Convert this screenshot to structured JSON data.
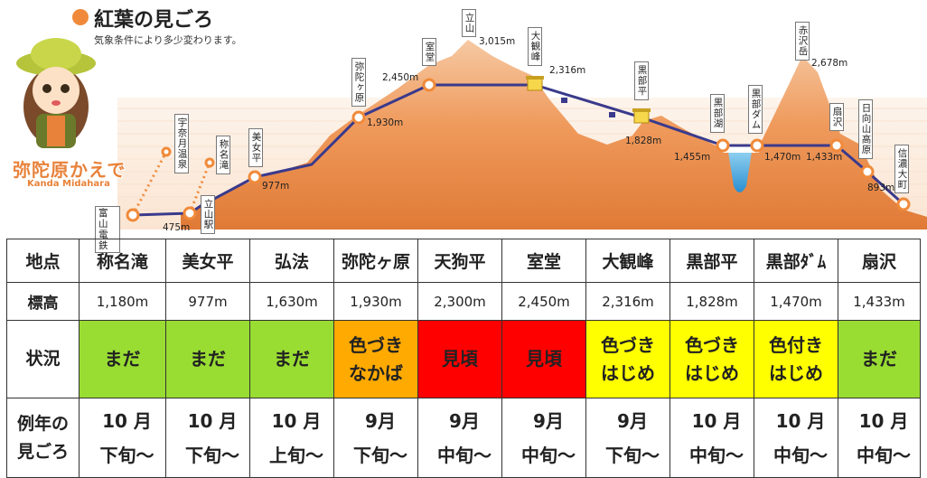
{
  "header": {
    "title": "紅葉の見ごろ",
    "subtitle": "気象条件により多少変わります。",
    "mascot_name": "弥陀原かえで",
    "mascot_roman": "Kanda Midahara",
    "accent_color": "#f08a3a"
  },
  "profile": {
    "stations": {
      "toyama_dentetsu": "富山電鉄",
      "tateyama_eki": "立山駅",
      "biyodaira": "美女平",
      "midagahara": "弥陀ヶ原",
      "murodo": "室堂",
      "daikanbo": "大観峰",
      "kurobedaira": "黒部平",
      "kurobeko": "黒部湖",
      "kurobe_dam": "黒部ダム",
      "ogisawa": "扇沢",
      "hinata_yama_kogen": "日向山高原",
      "shinano_omachi": "信濃大町",
      "unazuki_onsen": "宇奈月温泉",
      "shomyo_daki": "称名滝"
    },
    "peaks": {
      "tateyama": "立山",
      "akazawadake": "赤沢岳"
    },
    "elevations": {
      "tateyama_eki": "475m",
      "biyodaira": "977m",
      "midagahara": "1,930m",
      "murodo": "2,450m",
      "tateyama": "3,015m",
      "daikanbo": "2,316m",
      "kurobedaira": "1,828m",
      "kurobeko": "1,455m",
      "kurobe_dam": "1,470m",
      "ogisawa": "1,433m",
      "akazawadake": "2,678m",
      "hinata": "893m"
    }
  },
  "table": {
    "header_name": "地点",
    "header_elev": "標高",
    "header_status": "状況",
    "header_usual_1": "例年の",
    "header_usual_2": "見ごろ",
    "locations": [
      {
        "name": "称名滝",
        "elev": "1,180m",
        "status1": "まだ",
        "status2": "",
        "status_color": "#99dd33",
        "usual1": "10 月",
        "usual2": "下旬〜"
      },
      {
        "name": "美女平",
        "elev": "977m",
        "status1": "まだ",
        "status2": "",
        "status_color": "#99dd33",
        "usual1": "10 月",
        "usual2": "下旬〜"
      },
      {
        "name": "弘法",
        "elev": "1,630m",
        "status1": "まだ",
        "status2": "",
        "status_color": "#99dd33",
        "usual1": "10 月",
        "usual2": "上旬〜"
      },
      {
        "name": "弥陀ヶ原",
        "elev": "1,930m",
        "status1": "色づき",
        "status2": "なかば",
        "status_color": "#ffaa00",
        "usual1": "9月",
        "usual2": "下旬〜"
      },
      {
        "name": "天狗平",
        "elev": "2,300m",
        "status1": "見頃",
        "status2": "",
        "status_color": "#ff0000",
        "usual1": "9月",
        "usual2": "中旬〜"
      },
      {
        "name": "室堂",
        "elev": "2,450m",
        "status1": "見頃",
        "status2": "",
        "status_color": "#ff0000",
        "usual1": "9月",
        "usual2": "中旬〜"
      },
      {
        "name": "大観峰",
        "elev": "2,316m",
        "status1": "色づき",
        "status2": "はじめ",
        "status_color": "#ffff00",
        "usual1": "9月",
        "usual2": "下旬〜"
      },
      {
        "name": "黒部平",
        "elev": "1,828m",
        "status1": "色づき",
        "status2": "はじめ",
        "status_color": "#ffff00",
        "usual1": "10 月",
        "usual2": "中旬〜"
      },
      {
        "name": "黒部ﾀﾞﾑ",
        "elev": "1,470m",
        "status1": "色付き",
        "status2": "はじめ",
        "status_color": "#ffff00",
        "usual1": "10 月",
        "usual2": "中旬〜"
      },
      {
        "name": "扇沢",
        "elev": "1,433m",
        "status1": "まだ",
        "status2": "",
        "status_color": "#99dd33",
        "usual1": "10 月",
        "usual2": "中旬〜"
      }
    ]
  }
}
